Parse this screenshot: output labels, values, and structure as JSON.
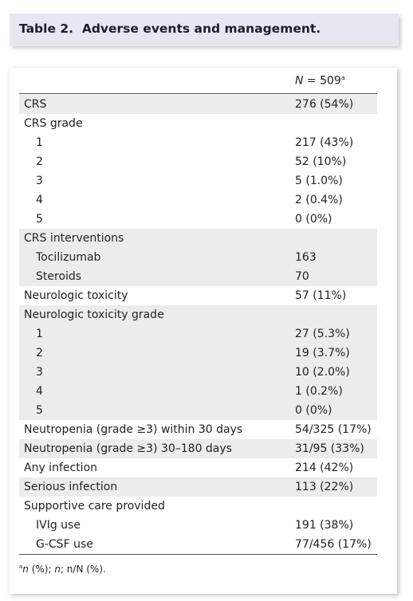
{
  "header": {
    "title": "Table 2.  Adverse events and management."
  },
  "table": {
    "column_header": {
      "symbol": "N",
      "text": " = 509",
      "superscript": "a"
    },
    "groups": [
      {
        "label": "CRS",
        "value": "276 (54%)"
      },
      {
        "label": "CRS grade",
        "items": [
          [
            "1",
            "217 (43%)"
          ],
          [
            "2",
            "52 (10%)"
          ],
          [
            "3",
            "5 (1.0%)"
          ],
          [
            "4",
            "2 (0.4%)"
          ],
          [
            "5",
            "0 (0%)"
          ]
        ]
      },
      {
        "label": "CRS interventions",
        "items": [
          [
            "Tocilizumab",
            "163"
          ],
          [
            "Steroids",
            "70"
          ]
        ]
      },
      {
        "label": "Neurologic toxicity",
        "value": "57 (11%)"
      },
      {
        "label": "Neurologic toxicity grade",
        "items": [
          [
            "1",
            "27 (5.3%)"
          ],
          [
            "2",
            "19 (3.7%)"
          ],
          [
            "3",
            "10 (2.0%)"
          ],
          [
            "4",
            "1 (0.2%)"
          ],
          [
            "5",
            "0 (0%)"
          ]
        ]
      },
      {
        "label": "Neutropenia (grade ≥3) within 30 days",
        "value": "54/325 (17%)"
      },
      {
        "label": "Neutropenia (grade ≥3) 30–180 days",
        "value": "31/95 (33%)"
      },
      {
        "label": "Any infection",
        "value": "214 (42%)"
      },
      {
        "label": "Serious infection",
        "value": "113 (22%)"
      },
      {
        "label": "Supportive care provided",
        "items": [
          [
            "IVIg use",
            "191 (38%)"
          ],
          [
            "G-CSF use",
            "77/456 (17%)"
          ]
        ]
      }
    ],
    "footnote": {
      "marker": "a",
      "parts": [
        "n",
        " (%); ",
        "n",
        "; n/N (%)."
      ]
    }
  }
}
